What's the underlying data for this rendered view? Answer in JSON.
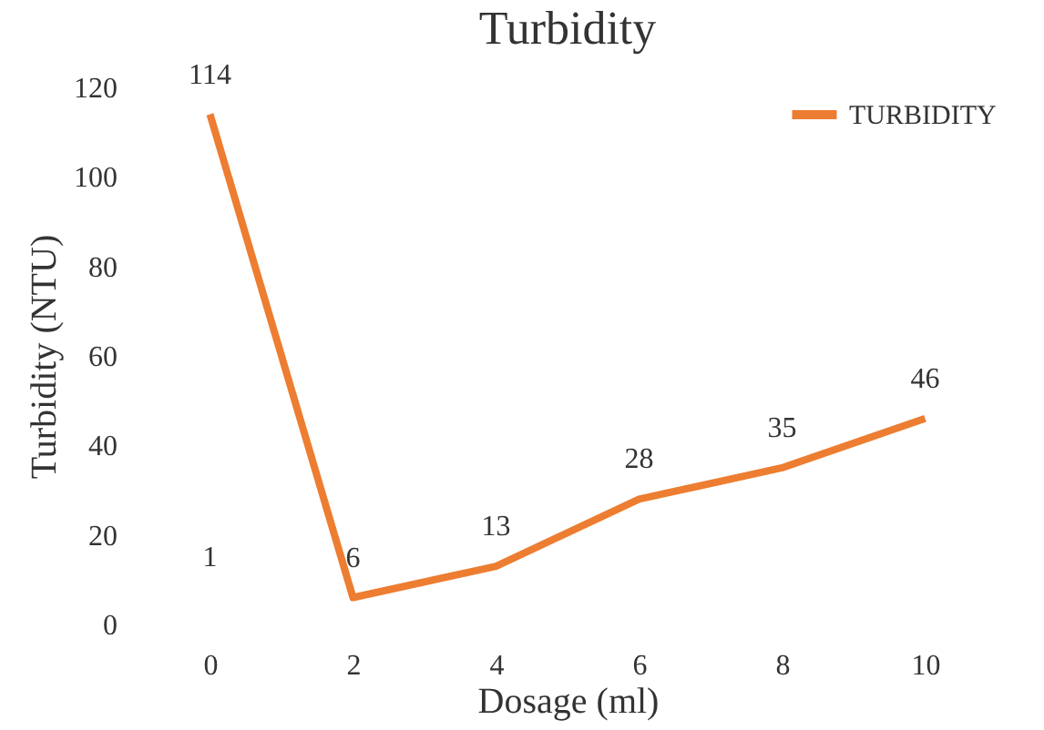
{
  "chart_data": {
    "type": "line",
    "title": "Turbidity",
    "xlabel": "Dosage (ml)",
    "ylabel": "Turbidity (NTU)",
    "categories": [
      "0",
      "2",
      "4",
      "6",
      "8",
      "10"
    ],
    "series": [
      {
        "name": "TURBIDITY",
        "color": "#ed7d31",
        "values": [
          114,
          6,
          13,
          28,
          35,
          46
        ]
      }
    ],
    "ylim": [
      0,
      120
    ],
    "yticks": [
      0,
      20,
      40,
      60,
      80,
      100,
      120
    ],
    "data_labels": true,
    "legend": "top right",
    "grid": false,
    "annotations": [
      "1"
    ]
  }
}
